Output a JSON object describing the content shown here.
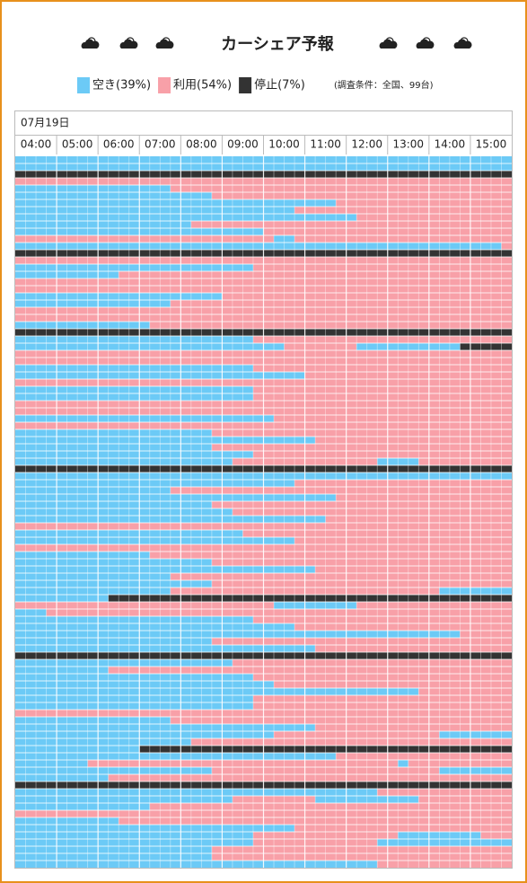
{
  "header": {
    "title": "カーシェア予報"
  },
  "legend": [
    {
      "label": "空き(39%)",
      "color": "#6ccaf6"
    },
    {
      "label": "利用(54%)",
      "color": "#f8a0a8"
    },
    {
      "label": "停止(7%)",
      "color": "#333333"
    }
  ],
  "condition": "(調査条件：全国、99台)",
  "table": {
    "date": "07月19日",
    "times": [
      "04:00",
      "05:00",
      "06:00",
      "07:00",
      "08:00",
      "09:00",
      "10:00",
      "11:00",
      "12:00",
      "13:00",
      "14:00",
      "15:00"
    ],
    "rows": [
      [
        [
          0,
          48
        ]
      ],
      [
        [
          0,
          48
        ]
      ],
      [
        [
          2,
          48
        ]
      ],
      [
        [
          1,
          48
        ]
      ],
      [
        [
          0,
          15
        ],
        [
          1,
          33
        ]
      ],
      [
        [
          0,
          19
        ],
        [
          1,
          29
        ]
      ],
      [
        [
          0,
          31
        ],
        [
          1,
          17
        ]
      ],
      [
        [
          0,
          27
        ],
        [
          1,
          21
        ]
      ],
      [
        [
          0,
          33
        ],
        [
          1,
          15
        ]
      ],
      [
        [
          0,
          17
        ],
        [
          1,
          31
        ]
      ],
      [
        [
          0,
          24
        ],
        [
          1,
          24
        ]
      ],
      [
        [
          1,
          25
        ],
        [
          0,
          2
        ],
        [
          1,
          21
        ]
      ],
      [
        [
          0,
          47
        ],
        [
          1,
          1
        ]
      ],
      [
        [
          2,
          48
        ]
      ],
      [
        [
          1,
          48
        ]
      ],
      [
        [
          0,
          23
        ],
        [
          1,
          25
        ]
      ],
      [
        [
          0,
          10
        ],
        [
          1,
          38
        ]
      ],
      [
        [
          1,
          48
        ]
      ],
      [
        [
          1,
          48
        ]
      ],
      [
        [
          0,
          20
        ],
        [
          1,
          28
        ]
      ],
      [
        [
          0,
          15
        ],
        [
          1,
          33
        ]
      ],
      [
        [
          1,
          48
        ]
      ],
      [
        [
          1,
          48
        ]
      ],
      [
        [
          0,
          13
        ],
        [
          1,
          35
        ]
      ],
      [
        [
          2,
          48
        ]
      ],
      [
        [
          0,
          23
        ],
        [
          1,
          25
        ]
      ],
      [
        [
          0,
          26
        ],
        [
          1,
          7
        ],
        [
          0,
          10
        ],
        [
          2,
          5
        ]
      ],
      [
        [
          1,
          48
        ]
      ],
      [
        [
          1,
          48
        ]
      ],
      [
        [
          0,
          23
        ],
        [
          1,
          25
        ]
      ],
      [
        [
          0,
          28
        ],
        [
          1,
          20
        ]
      ],
      [
        [
          1,
          48
        ]
      ],
      [
        [
          0,
          23
        ],
        [
          1,
          25
        ]
      ],
      [
        [
          0,
          23
        ],
        [
          1,
          25
        ]
      ],
      [
        [
          1,
          48
        ]
      ],
      [
        [
          1,
          48
        ]
      ],
      [
        [
          0,
          25
        ],
        [
          1,
          23
        ]
      ],
      [
        [
          1,
          48
        ]
      ],
      [
        [
          0,
          19
        ],
        [
          1,
          29
        ]
      ],
      [
        [
          0,
          29
        ],
        [
          1,
          19
        ]
      ],
      [
        [
          0,
          19
        ],
        [
          1,
          29
        ]
      ],
      [
        [
          0,
          23
        ],
        [
          1,
          25
        ]
      ],
      [
        [
          0,
          21
        ],
        [
          1,
          14
        ],
        [
          0,
          4
        ],
        [
          1,
          9
        ]
      ],
      [
        [
          2,
          48
        ]
      ],
      [
        [
          0,
          48
        ]
      ],
      [
        [
          0,
          27
        ],
        [
          1,
          21
        ]
      ],
      [
        [
          0,
          15
        ],
        [
          1,
          33
        ]
      ],
      [
        [
          0,
          31
        ],
        [
          1,
          17
        ]
      ],
      [
        [
          0,
          19
        ],
        [
          1,
          29
        ]
      ],
      [
        [
          0,
          21
        ],
        [
          1,
          27
        ]
      ],
      [
        [
          0,
          30
        ],
        [
          1,
          18
        ]
      ],
      [
        [
          1,
          48
        ]
      ],
      [
        [
          0,
          22
        ],
        [
          1,
          26
        ]
      ],
      [
        [
          0,
          27
        ],
        [
          1,
          21
        ]
      ],
      [
        [
          1,
          48
        ]
      ],
      [
        [
          0,
          13
        ],
        [
          1,
          35
        ]
      ],
      [
        [
          0,
          19
        ],
        [
          1,
          29
        ]
      ],
      [
        [
          0,
          29
        ],
        [
          1,
          19
        ]
      ],
      [
        [
          0,
          15
        ],
        [
          1,
          33
        ]
      ],
      [
        [
          0,
          19
        ],
        [
          1,
          29
        ]
      ],
      [
        [
          0,
          15
        ],
        [
          1,
          26
        ],
        [
          0,
          7
        ]
      ],
      [
        [
          0,
          9
        ],
        [
          2,
          39
        ]
      ],
      [
        [
          1,
          25
        ],
        [
          0,
          8
        ],
        [
          1,
          15
        ]
      ],
      [
        [
          0,
          3
        ],
        [
          1,
          45
        ]
      ],
      [
        [
          0,
          23
        ],
        [
          1,
          25
        ]
      ],
      [
        [
          0,
          27
        ],
        [
          1,
          21
        ]
      ],
      [
        [
          0,
          43
        ],
        [
          1,
          5
        ]
      ],
      [
        [
          0,
          19
        ],
        [
          1,
          29
        ]
      ],
      [
        [
          0,
          29
        ],
        [
          1,
          19
        ]
      ],
      [
        [
          2,
          48
        ]
      ],
      [
        [
          0,
          21
        ],
        [
          1,
          27
        ]
      ],
      [
        [
          0,
          9
        ],
        [
          1,
          39
        ]
      ],
      [
        [
          0,
          23
        ],
        [
          1,
          25
        ]
      ],
      [
        [
          0,
          25
        ],
        [
          1,
          23
        ]
      ],
      [
        [
          0,
          39
        ],
        [
          1,
          9
        ]
      ],
      [
        [
          0,
          23
        ],
        [
          1,
          25
        ]
      ],
      [
        [
          0,
          23
        ],
        [
          1,
          25
        ]
      ],
      [
        [
          1,
          48
        ]
      ],
      [
        [
          0,
          15
        ],
        [
          1,
          33
        ]
      ],
      [
        [
          0,
          29
        ],
        [
          1,
          19
        ]
      ],
      [
        [
          0,
          25
        ],
        [
          1,
          16
        ],
        [
          0,
          7
        ]
      ],
      [
        [
          0,
          17
        ],
        [
          1,
          31
        ]
      ],
      [
        [
          0,
          12
        ],
        [
          2,
          36
        ]
      ],
      [
        [
          0,
          31
        ],
        [
          1,
          17
        ]
      ],
      [
        [
          0,
          7
        ],
        [
          1,
          30
        ],
        [
          0,
          1
        ],
        [
          1,
          10
        ]
      ],
      [
        [
          0,
          19
        ],
        [
          1,
          22
        ],
        [
          0,
          7
        ]
      ],
      [
        [
          0,
          9
        ],
        [
          1,
          39
        ]
      ],
      [
        [
          2,
          48
        ]
      ],
      [
        [
          0,
          35
        ],
        [
          1,
          13
        ]
      ],
      [
        [
          0,
          21
        ],
        [
          1,
          8
        ],
        [
          0,
          10
        ],
        [
          1,
          9
        ]
      ],
      [
        [
          0,
          13
        ],
        [
          1,
          35
        ]
      ],
      [
        [
          1,
          48
        ]
      ],
      [
        [
          0,
          10
        ],
        [
          1,
          38
        ]
      ],
      [
        [
          0,
          27
        ],
        [
          1,
          21
        ]
      ],
      [
        [
          0,
          23
        ],
        [
          1,
          14
        ],
        [
          0,
          8
        ],
        [
          1,
          3
        ]
      ],
      [
        [
          0,
          23
        ],
        [
          1,
          12
        ],
        [
          0,
          13
        ]
      ],
      [
        [
          0,
          19
        ],
        [
          1,
          29
        ]
      ],
      [
        [
          0,
          19
        ],
        [
          1,
          29
        ]
      ],
      [
        [
          0,
          35
        ],
        [
          1,
          13
        ]
      ]
    ]
  }
}
